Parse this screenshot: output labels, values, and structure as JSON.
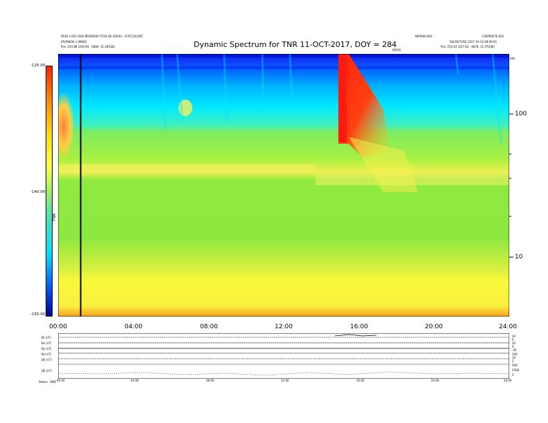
{
  "header": {
    "title": "Dynamic Spectrum for TNR 11-OCT-2017, DOY = 284",
    "left_line1": "0030 x 001 [000 8P4000SP (TO)E 80 (001R) - 0/TCC(0)]SPC",
    "left_line2": "A5(P8830 x 00800",
    "left_line3": "Pos:   254.88 (226.94, -5884, 11.24GSE)",
    "center_label": "0RYCE",
    "right_top_left": "NP0060.000",
    "right_top_right": "L0SP00076.001",
    "right_line2": "S0LPICTURE 2017-10-12 08:00:01",
    "right_line3": "Pos:   254.43 (227.62, -4878, 11.07GSE)",
    "right_small": "kHz"
  },
  "colorbar": {
    "top_label": "-125.00",
    "mid_label": "-140.00",
    "bottom_label": "-155.00",
    "side_label": "TNR"
  },
  "chart_data": {
    "type": "heatmap",
    "title": "Dynamic Spectrum for TNR 11-OCT-2017, DOY = 284",
    "x_ticks": [
      "00:00",
      "04:00",
      "08:00",
      "12:00",
      "16:00",
      "20:00",
      "24:00"
    ],
    "xlim": [
      0,
      24
    ],
    "right_axis_ticks": [
      "100",
      "10"
    ],
    "right_axis_scale": "log",
    "right_axis_unit": "kHz",
    "colorbar_range": [
      -155,
      -125
    ],
    "colorbar_ticks": [
      -125,
      -140,
      -155
    ],
    "colors": {
      "background_band": "#7cea3a",
      "low_freq_band": "#f2f23a",
      "upper_band": "#00e0ff",
      "top_band": "#0a2af0",
      "burst": "#f03020"
    },
    "events": [
      {
        "name": "",
        "time_start": 15.0,
        "time_end": 17.5,
        "kind": "type III burst"
      }
    ],
    "marker_line_time": 1.2
  },
  "bottom_panel": {
    "left_labels": [
      "Bt (nT)",
      "Bx (nT)",
      "By (nT)",
      "Bz (nT)",
      "|B| (nT)",
      "|B| (nT)"
    ],
    "right_labels": [
      "20",
      "0",
      "20",
      "0",
      "-20",
      "100",
      "10",
      "1",
      "500",
      "2500",
      "5"
    ],
    "x_ticks": [
      "00:00",
      "04:00",
      "08:00",
      "12:00",
      "16:00",
      "20:00",
      "24:00"
    ],
    "footer_label": "Status",
    "footer_value": "SWE"
  }
}
